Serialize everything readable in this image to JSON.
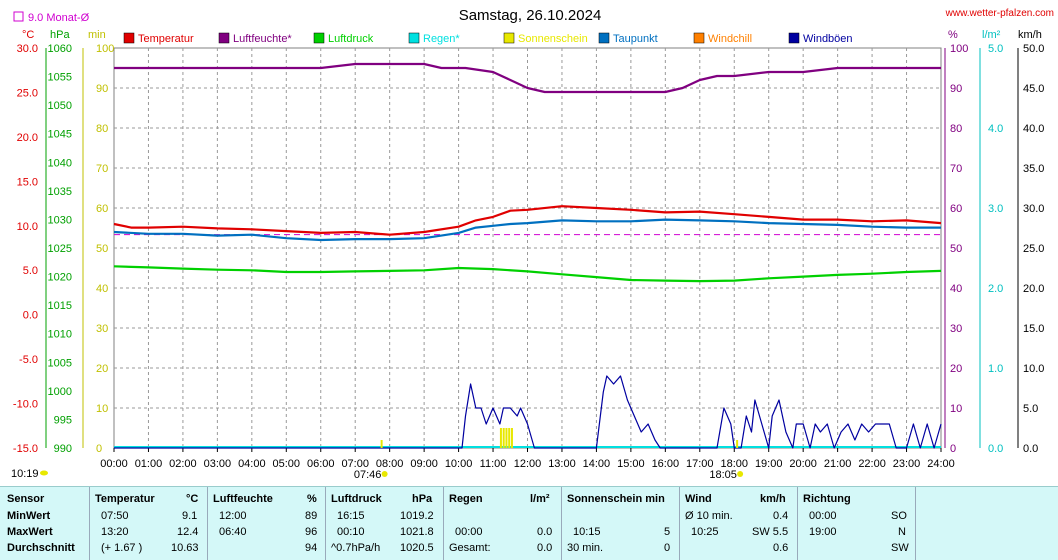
{
  "title": "Samstag, 26.10.2024",
  "website": "www.wetter-pfalzen.com",
  "month_avg_label": "9.0 Monat-Ø",
  "axis_units": {
    "temp": "°C",
    "press": "hPa",
    "min": "min",
    "pct": "%",
    "rain": "l/m²",
    "wind": "km/h"
  },
  "legend": [
    {
      "label": "Temperatur",
      "color": "#e00000"
    },
    {
      "label": "Luftfeuchte*",
      "color": "#800080"
    },
    {
      "label": "Luftdruck",
      "color": "#00d000"
    },
    {
      "label": "Regen*",
      "color": "#00e0e0"
    },
    {
      "label": "Sonnenschein",
      "color": "#e8e800"
    },
    {
      "label": "Taupunkt",
      "color": "#0070c0"
    },
    {
      "label": "Windchill",
      "color": "#ff8000"
    },
    {
      "label": "Windböen",
      "color": "#0000a0"
    }
  ],
  "sun_markers": {
    "sunrise": "07:46",
    "sunset": "18:05",
    "moon": "10:19"
  },
  "chart_data": {
    "type": "line",
    "title": "Samstag, 26.10.2024",
    "x_ticks": [
      "00:00",
      "01:00",
      "02:00",
      "03:00",
      "04:00",
      "05:00",
      "06:00",
      "07:00",
      "08:00",
      "09:00",
      "10:00",
      "11:00",
      "12:00",
      "13:00",
      "14:00",
      "15:00",
      "16:00",
      "17:00",
      "18:00",
      "19:00",
      "20:00",
      "21:00",
      "22:00",
      "23:00",
      "24:00"
    ],
    "xlim_hours": [
      0,
      24
    ],
    "axes": {
      "temp": {
        "unit": "°C",
        "range": [
          -15,
          30
        ],
        "ticks": [
          "30.0",
          "25.0",
          "20.0",
          "15.0",
          "10.0",
          "5.0",
          "0.0",
          "-5.0",
          "-10.0",
          "-15.0"
        ]
      },
      "press": {
        "unit": "hPa",
        "range": [
          990,
          1060
        ],
        "ticks": [
          "1060",
          "1055",
          "1050",
          "1045",
          "1040",
          "1035",
          "1030",
          "1025",
          "1020",
          "1015",
          "1010",
          "1005",
          "1000",
          "995",
          "990"
        ]
      },
      "min": {
        "unit": "min",
        "range": [
          0,
          100
        ],
        "ticks": [
          "100",
          "90",
          "80",
          "70",
          "60",
          "50",
          "40",
          "30",
          "20",
          "10",
          "0"
        ]
      },
      "pct": {
        "unit": "%",
        "range": [
          0,
          100
        ],
        "ticks": [
          "100",
          "90",
          "80",
          "70",
          "60",
          "50",
          "40",
          "30",
          "20",
          "10",
          "0"
        ]
      },
      "rain": {
        "unit": "l/m²",
        "range": [
          0,
          5
        ],
        "ticks": [
          "5.0",
          "4.0",
          "3.0",
          "2.0",
          "1.0",
          "0.0"
        ]
      },
      "wind": {
        "unit": "km/h",
        "range": [
          0,
          50
        ],
        "ticks": [
          "50.0",
          "45.0",
          "40.0",
          "35.0",
          "30.0",
          "25.0",
          "20.0",
          "15.0",
          "10.0",
          "5.0",
          "0.0"
        ]
      }
    },
    "month_avg_temp": 9.0,
    "grid": true,
    "series": [
      {
        "name": "Luftfeuchte*",
        "axis": "pct",
        "color": "#800080",
        "x": [
          0,
          6,
          7,
          8,
          9,
          9.5,
          10.2,
          11,
          11.5,
          12,
          12.5,
          13,
          14,
          15,
          16,
          16.5,
          17,
          17.5,
          18,
          19,
          20,
          21,
          22,
          23,
          24
        ],
        "y": [
          95,
          95,
          96,
          96,
          96,
          95,
          95,
          94,
          92,
          90,
          89,
          89,
          89,
          89,
          89,
          90,
          92,
          93,
          93,
          94,
          94,
          95,
          95,
          95,
          95
        ]
      },
      {
        "name": "Temperatur",
        "axis": "temp",
        "color": "#e00000",
        "x": [
          0,
          0.5,
          1,
          2,
          3,
          4,
          5,
          6,
          7,
          8,
          9,
          10,
          10.5,
          11,
          11.5,
          12,
          13,
          14,
          15,
          16,
          17,
          18,
          19,
          20,
          21,
          22,
          23,
          24
        ],
        "y": [
          10.2,
          9.8,
          9.8,
          9.9,
          9.7,
          9.6,
          9.4,
          9.2,
          9.3,
          9.0,
          9.3,
          9.9,
          10.6,
          11.0,
          11.7,
          11.8,
          12.2,
          12.0,
          11.8,
          11.5,
          11.6,
          11.3,
          11.0,
          10.7,
          10.7,
          10.5,
          10.6,
          10.3
        ]
      },
      {
        "name": "Taupunkt",
        "axis": "temp",
        "color": "#0070c0",
        "x": [
          0,
          1,
          2,
          3,
          4,
          5,
          6,
          7,
          8,
          9,
          10,
          10.5,
          11,
          11.5,
          12,
          13,
          14,
          15,
          16,
          17,
          18,
          19,
          20,
          21,
          22,
          23,
          24
        ],
        "y": [
          9.3,
          9.1,
          9.1,
          8.9,
          9.0,
          8.6,
          8.4,
          8.5,
          8.5,
          8.6,
          9.2,
          9.8,
          10.0,
          10.2,
          10.3,
          10.6,
          10.5,
          10.5,
          10.7,
          10.6,
          10.5,
          10.3,
          10.2,
          10.1,
          9.9,
          9.8,
          9.8
        ]
      },
      {
        "name": "Luftdruck",
        "axis": "press",
        "color": "#00d000",
        "x": [
          0,
          1,
          2,
          3,
          4,
          5,
          6,
          7,
          8,
          9,
          10,
          11,
          12,
          13,
          14,
          15,
          16,
          17,
          18,
          19,
          20,
          21,
          22,
          23,
          24
        ],
        "y": [
          1021.8,
          1021.6,
          1021.4,
          1021.2,
          1021.1,
          1020.8,
          1020.8,
          1020.9,
          1021.0,
          1021.1,
          1021.5,
          1021.3,
          1020.9,
          1020.4,
          1019.9,
          1019.4,
          1019.3,
          1019.2,
          1019.3,
          1019.7,
          1020.0,
          1020.3,
          1020.5,
          1020.8,
          1021.0
        ]
      },
      {
        "name": "Windböen",
        "axis": "wind",
        "color": "#0000a0",
        "x": [
          0,
          10.1,
          10.2,
          10.35,
          10.5,
          10.65,
          10.8,
          11.0,
          11.2,
          11.3,
          11.5,
          11.7,
          11.8,
          12.0,
          12.2,
          12.3,
          14.0,
          14.2,
          14.3,
          14.5,
          14.7,
          14.9,
          15.1,
          15.3,
          15.5,
          15.7,
          15.85,
          16.0,
          17.5,
          17.7,
          17.9,
          18.0,
          18.2,
          18.35,
          18.5,
          18.6,
          18.8,
          19.0,
          19.1,
          19.3,
          19.5,
          19.7,
          19.8,
          20.0,
          20.2,
          20.35,
          20.5,
          20.7,
          20.9,
          21.1,
          21.3,
          21.5,
          21.7,
          21.9,
          22.1,
          22.3,
          22.5,
          22.7,
          23.0,
          23.2,
          23.4,
          23.6,
          23.8,
          24.0
        ],
        "y": [
          0,
          0,
          4,
          8,
          5,
          5,
          3,
          5,
          3,
          5,
          5,
          4,
          5,
          3,
          0,
          0,
          0,
          7,
          9,
          8,
          9,
          6,
          4,
          2,
          3,
          1,
          0,
          0,
          0,
          5,
          3,
          0,
          0,
          4,
          2,
          6,
          3,
          0,
          4,
          6,
          2,
          0,
          3,
          3,
          0,
          3,
          2,
          3,
          0,
          2,
          3,
          1,
          3,
          2,
          3,
          3,
          3,
          0,
          0,
          3,
          0,
          3,
          0,
          3
        ]
      }
    ],
    "sunshine_bars": [
      {
        "from": 11.2,
        "to": 11.6,
        "height": 5
      }
    ],
    "stats_rows": {
      "MinWert": {
        "temp_time": "07:50",
        "temp_val": "9.1",
        "hum_time": "12:00",
        "hum_val": "89",
        "press_time": "16:15",
        "press_val": "1019.2",
        "wind_label": "Ø 10 min.",
        "wind_val": "0.4",
        "dir_time": "00:00",
        "dir_val": "SO"
      },
      "MaxWert": {
        "temp_time": "13:20",
        "temp_val": "12.4",
        "hum_time": "06:40",
        "hum_val": "96",
        "press_time": "00:10",
        "press_val": "1021.8",
        "rain_time": "00:00",
        "rain_val": "0.0",
        "sun_time": "10:15",
        "sun_val": "5",
        "wind_time": "10:25",
        "wind_val": "SW 5.5",
        "dir_time": "19:00",
        "dir_val": "N"
      }
    }
  },
  "stats": {
    "headers": {
      "sensor": "Sensor",
      "temp": "Temperatur",
      "temp_unit": "°C",
      "hum": "Luftfeuchte",
      "hum_unit": "%",
      "press": "Luftdruck",
      "press_unit": "hPa",
      "rain": "Regen",
      "rain_unit": "l/m²",
      "sun": "Sonnenschein min",
      "wind": "Wind",
      "wind_unit": "km/h",
      "dir": "Richtung"
    },
    "row_labels": [
      "MinWert",
      "MaxWert",
      "Durchschnitt"
    ],
    "min": {
      "temp_time": "07:50",
      "temp_val": "9.1",
      "hum_time": "12:00",
      "hum_val": "89",
      "press_time": "16:15",
      "press_val": "1019.2",
      "rain_time": "",
      "rain_val": "",
      "sun_time": "",
      "sun_val": "",
      "wind_label": "Ø 10 min.",
      "wind_val": "0.4",
      "dir_time": "00:00",
      "dir_val": "SO"
    },
    "max": {
      "temp_time": "13:20",
      "temp_val": "12.4",
      "hum_time": "06:40",
      "hum_val": "96",
      "press_time": "00:10",
      "press_val": "1021.8",
      "rain_time": "00:00",
      "rain_val": "0.0",
      "sun_time": "10:15",
      "sun_val": "5",
      "wind_label": "10:25",
      "wind_val": "SW 5.5",
      "dir_time": "19:00",
      "dir_val": "N"
    },
    "avg": {
      "temp_time": "(+ 1.67 )",
      "temp_val": "10.63",
      "hum_time": "",
      "hum_val": "94",
      "press_time": "^0.7hPa/h",
      "press_val": "1020.5",
      "rain_time": "Gesamt:",
      "rain_val": "0.0",
      "sun_time": "30 min.",
      "sun_val": "0",
      "wind_label": "",
      "wind_val": "0.6",
      "dir_time": "",
      "dir_val": "SW"
    }
  }
}
